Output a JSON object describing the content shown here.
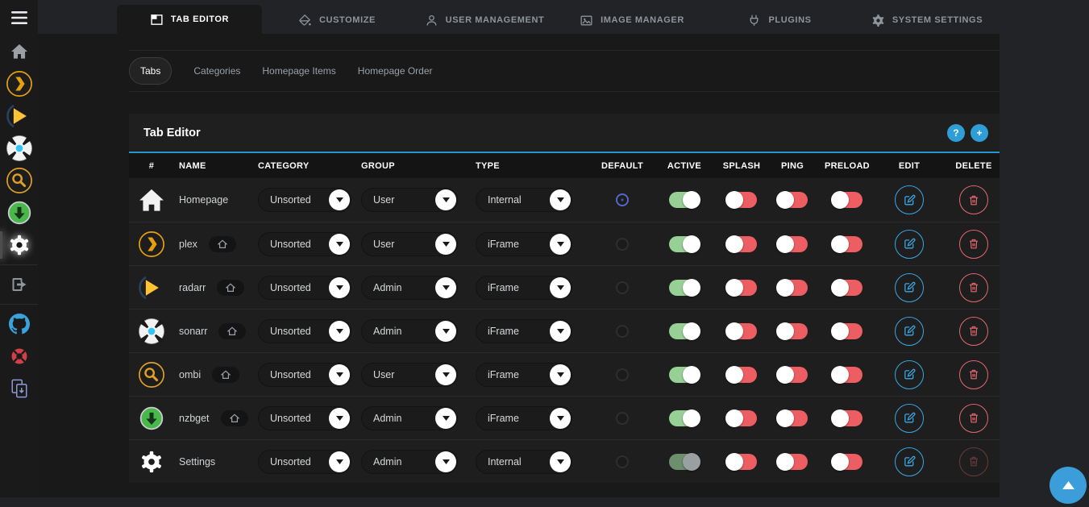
{
  "sidebar": {
    "menu": {
      "id": "menu",
      "icon": "menu-icon"
    },
    "items": [
      {
        "id": "home",
        "icon": "home-icon"
      },
      {
        "id": "plex",
        "icon": "plex-icon"
      },
      {
        "id": "radarr",
        "icon": "radarr-icon"
      },
      {
        "id": "sonarr",
        "icon": "sonarr-icon"
      },
      {
        "id": "ombi",
        "icon": "ombi-icon"
      },
      {
        "id": "nzbget",
        "icon": "nzbget-icon"
      },
      {
        "id": "settings",
        "icon": "gear-icon",
        "active": true
      },
      {
        "id": "logout",
        "icon": "logout-icon",
        "divider_before": true
      },
      {
        "id": "github",
        "icon": "github-icon",
        "divider_before": true
      },
      {
        "id": "support",
        "icon": "lifebuoy-icon"
      },
      {
        "id": "pages",
        "icon": "pages-icon"
      }
    ]
  },
  "top_tabs": [
    {
      "id": "tab-editor",
      "label": "TAB EDITOR",
      "icon": "tab-editor-icon",
      "active": true
    },
    {
      "id": "customize",
      "label": "CUSTOMIZE",
      "icon": "paint-bucket-icon"
    },
    {
      "id": "user-management",
      "label": "USER MANAGEMENT",
      "icon": "user-icon"
    },
    {
      "id": "image-manager",
      "label": "IMAGE MANAGER",
      "icon": "image-icon"
    },
    {
      "id": "plugins",
      "label": "PLUGINS",
      "icon": "plug-icon"
    },
    {
      "id": "system-settings",
      "label": "SYSTEM SETTINGS",
      "icon": "gear-outline-icon"
    }
  ],
  "sub_tabs": [
    {
      "id": "tabs",
      "label": "Tabs",
      "active": true
    },
    {
      "id": "categories",
      "label": "Categories"
    },
    {
      "id": "homepage-items",
      "label": "Homepage Items"
    },
    {
      "id": "homepage-order",
      "label": "Homepage Order"
    }
  ],
  "panel": {
    "title": "Tab Editor",
    "help_label": "?",
    "add_label": "+"
  },
  "table": {
    "columns": [
      "#",
      "NAME",
      "CATEGORY",
      "GROUP",
      "TYPE",
      "DEFAULT",
      "ACTIVE",
      "SPLASH",
      "PING",
      "PRELOAD",
      "EDIT",
      "DELETE"
    ],
    "rows": [
      {
        "icon": "homepage",
        "name": "Homepage",
        "home_badge": false,
        "category": "Unsorted",
        "group": "User",
        "type": "Internal",
        "default_selected": true,
        "active": "on",
        "splash": "off",
        "ping": "off",
        "preload": "off",
        "delete_enabled": true
      },
      {
        "icon": "plex",
        "name": "plex",
        "home_badge": true,
        "category": "Unsorted",
        "group": "User",
        "type": "iFrame",
        "default_selected": false,
        "active": "on",
        "splash": "off",
        "ping": "off",
        "preload": "off",
        "delete_enabled": true
      },
      {
        "icon": "radarr",
        "name": "radarr",
        "home_badge": true,
        "category": "Unsorted",
        "group": "Admin",
        "type": "iFrame",
        "default_selected": false,
        "active": "on",
        "splash": "off",
        "ping": "off",
        "preload": "off",
        "delete_enabled": true
      },
      {
        "icon": "sonarr",
        "name": "sonarr",
        "home_badge": true,
        "category": "Unsorted",
        "group": "Admin",
        "type": "iFrame",
        "default_selected": false,
        "active": "on",
        "splash": "off",
        "ping": "off",
        "preload": "off",
        "delete_enabled": true
      },
      {
        "icon": "ombi",
        "name": "ombi",
        "home_badge": true,
        "category": "Unsorted",
        "group": "User",
        "type": "iFrame",
        "default_selected": false,
        "active": "on",
        "splash": "off",
        "ping": "off",
        "preload": "off",
        "delete_enabled": true
      },
      {
        "icon": "nzbget",
        "name": "nzbget",
        "home_badge": true,
        "category": "Unsorted",
        "group": "Admin",
        "type": "iFrame",
        "default_selected": false,
        "active": "on",
        "splash": "off",
        "ping": "off",
        "preload": "off",
        "delete_enabled": true
      },
      {
        "icon": "settings",
        "name": "Settings",
        "home_badge": false,
        "category": "Unsorted",
        "group": "Admin",
        "type": "Internal",
        "default_selected": false,
        "active": "disabled-on",
        "splash": "off",
        "ping": "off",
        "preload": "off",
        "delete_enabled": false
      }
    ]
  },
  "colors": {
    "accent_blue": "#2f9ed6",
    "header_border_blue": "#2596cd",
    "fab_blue": "#3b9dd9",
    "toggle_green": "#97d095",
    "toggle_red": "#ed5e63",
    "toggle_disabled_track": "#6d8f6d",
    "radio_selected": "#5767c8",
    "edit_blue": "#3aa7e0",
    "delete_red": "#e2686e",
    "plex_gold": "#e5a00d",
    "ombi_gold": "#df9f28",
    "radarr_yellow": "#ffc230",
    "sonarr_blue": "#35c5f4",
    "nzbget_green": "#49b749",
    "github_blue": "#3ba3dc",
    "support_red": "#ce4148",
    "pages_purple": "#8e9bd8"
  }
}
